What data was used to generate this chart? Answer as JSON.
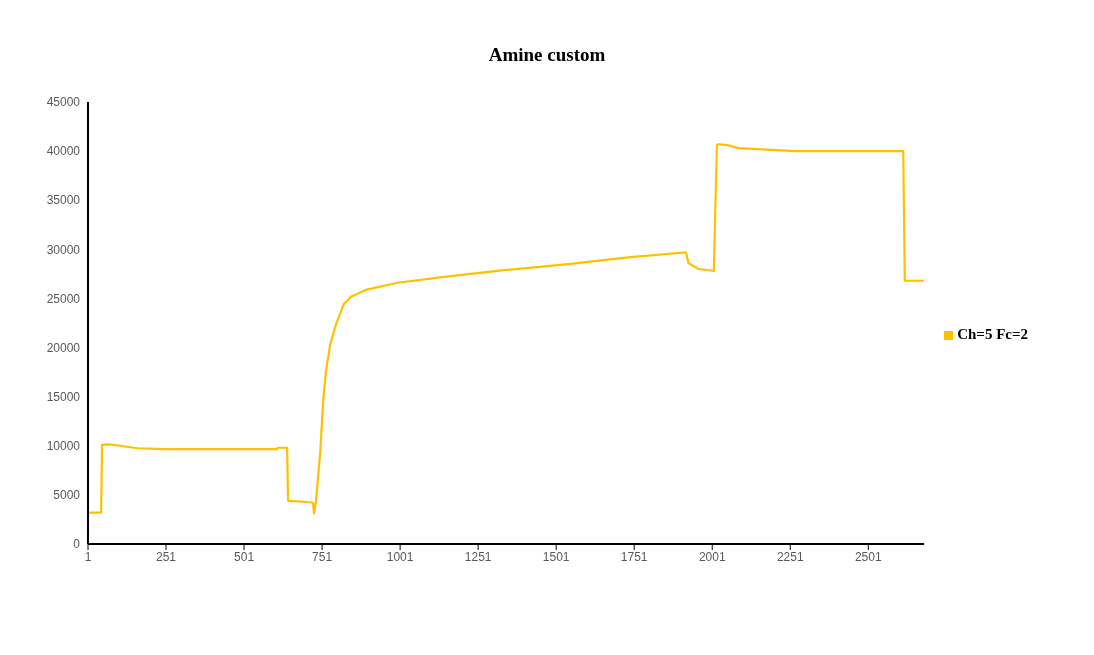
{
  "chart_data": {
    "type": "line",
    "title": "Amine custom",
    "x": [
      1,
      43,
      46,
      70,
      114,
      159,
      248,
      606,
      609,
      639,
      642,
      695,
      722,
      725,
      731,
      745,
      755,
      763,
      777,
      795,
      820,
      845,
      894,
      993,
      1142,
      1341,
      1539,
      1738,
      1917,
      1925,
      1957,
      2006,
      2016,
      2021,
      2051,
      2086,
      2145,
      2269,
      2613,
      2618,
      2680
    ],
    "series": [
      {
        "name": "Ch=5 Fc=2",
        "color": "#ffc000",
        "values": [
          3200,
          3200,
          10100,
          10150,
          9950,
          9750,
          9650,
          9650,
          9800,
          9800,
          4400,
          4300,
          4200,
          3100,
          4200,
          9300,
          14800,
          17500,
          20300,
          22300,
          24400,
          25200,
          25900,
          26600,
          27200,
          27900,
          28500,
          29200,
          29700,
          28600,
          28000,
          27800,
          40600,
          40700,
          40600,
          40300,
          40200,
          40000,
          40000,
          26800,
          26800
        ]
      }
    ],
    "xlim": [
      1,
      2680
    ],
    "xticks": [
      1,
      251,
      501,
      751,
      1001,
      1251,
      1501,
      1751,
      2001,
      2251,
      2501
    ],
    "ylim": [
      0,
      45000
    ],
    "yticks": [
      0,
      5000,
      10000,
      15000,
      20000,
      25000,
      30000,
      35000,
      40000,
      45000
    ],
    "grid": false,
    "legend": "right",
    "marker": "none",
    "line_style": "solid"
  }
}
